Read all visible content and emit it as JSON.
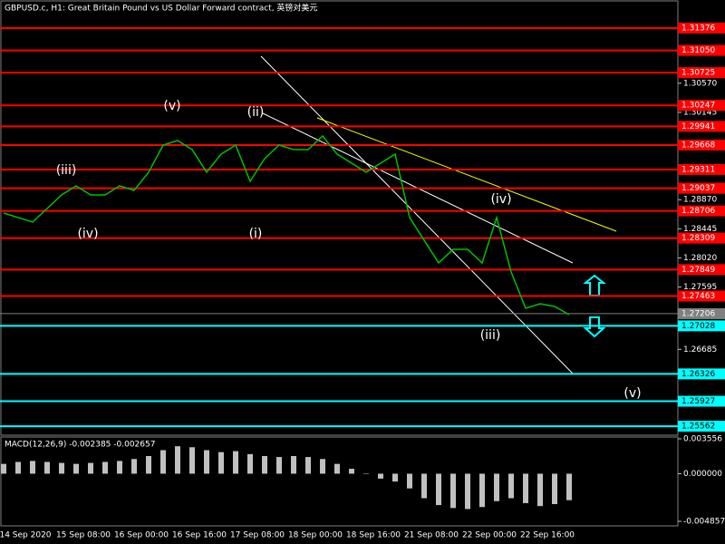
{
  "chart_data": [
    {
      "type": "line",
      "title": "GBPUSD.c, H1:  Great Britain Pound vs US Dollar Forward contract, 英镑对美元",
      "series": [
        {
          "name": "GBPUSD.c",
          "color": "#00c000",
          "values": [
            1.28675,
            1.28609,
            1.28543,
            1.28741,
            1.2894,
            1.29072,
            1.2894,
            1.2894,
            1.29072,
            1.29006,
            1.29271,
            1.29668,
            1.29734,
            1.29602,
            1.29271,
            1.29536,
            1.29668,
            1.29138,
            1.29469,
            1.29668,
            1.29602,
            1.29602,
            1.298,
            1.29536,
            1.29403,
            1.29271,
            1.29403,
            1.29536,
            1.28609,
            1.28278,
            1.27947,
            1.28145,
            1.28145,
            1.27947,
            1.28609,
            1.27814,
            1.27285,
            1.27351,
            1.27311,
            1.27192
          ]
        }
      ],
      "x_labels": [
        "14 Sep 2020",
        "15 Sep 08:00",
        "16 Sep 00:00",
        "16 Sep 16:00",
        "17 Sep 08:00",
        "18 Sep 00:00",
        "18 Sep 16:00",
        "21 Sep 08:00",
        "22 Sep 00:00",
        "22 Sep 16:00"
      ],
      "ylim": [
        1.25431,
        1.31786
      ],
      "yticks": [
        {
          "value": 1.3057,
          "label": "1.30570"
        },
        {
          "value": 1.30145,
          "label": "1.30145"
        },
        {
          "value": 1.2887,
          "label": "1.28870"
        },
        {
          "value": 1.28445,
          "label": "1.28445"
        },
        {
          "value": 1.2802,
          "label": "1.28020"
        },
        {
          "value": 1.27595,
          "label": "1.27595"
        },
        {
          "value": 1.26685,
          "label": "1.26685"
        }
      ],
      "red_levels": [
        {
          "value": 1.31376,
          "label": "1.31376"
        },
        {
          "value": 1.3105,
          "label": "1.31050"
        },
        {
          "value": 1.30725,
          "label": "1.30725"
        },
        {
          "value": 1.30247,
          "label": "1.30247"
        },
        {
          "value": 1.29941,
          "label": "1.29941"
        },
        {
          "value": 1.29668,
          "label": "1.29668"
        },
        {
          "value": 1.29311,
          "label": "1.29311"
        },
        {
          "value": 1.29037,
          "label": "1.29037"
        },
        {
          "value": 1.28706,
          "label": "1.28706"
        },
        {
          "value": 1.28309,
          "label": "1.28309"
        },
        {
          "value": 1.27849,
          "label": "1.27849"
        },
        {
          "value": 1.27463,
          "label": "1.27463"
        }
      ],
      "red_color": "#ff0000",
      "cyan_levels": [
        {
          "value": 1.27028,
          "label": "1.27028"
        },
        {
          "value": 1.26326,
          "label": "1.26326"
        },
        {
          "value": 1.25927,
          "label": "1.25927"
        },
        {
          "value": 1.25562,
          "label": "1.25562"
        }
      ],
      "cyan_color": "#00ffff",
      "current_price": {
        "value": 1.27206,
        "label": "1.27206"
      },
      "annotations": [
        "(iii)",
        "(iv)",
        "(v)",
        "(ii)",
        "(i)",
        "(iv)",
        "(iii)",
        "(v)"
      ]
    },
    {
      "type": "bar",
      "title": "MACD(12,26,9) -0.002385 -0.002657",
      "color": "#c0c0c0",
      "values": [
        0.001,
        0.0012,
        0.0013,
        0.0012,
        0.0011,
        0.001,
        0.0011,
        0.0012,
        0.0013,
        0.0015,
        0.0018,
        0.0024,
        0.0028,
        0.0027,
        0.0024,
        0.0022,
        0.0023,
        0.002,
        0.0018,
        0.0017,
        0.0018,
        0.0017,
        0.0015,
        0.001,
        0.0005,
        0,
        -0.0005,
        -0.0008,
        -0.0015,
        -0.0025,
        -0.0032,
        -0.0035,
        -0.0036,
        -0.0034,
        -0.0028,
        -0.0025,
        -0.003,
        -0.0033,
        -0.0031,
        -0.0027
      ],
      "ylim": [
        -0.005319,
        0.003741
      ],
      "yticks": [
        0.003556,
        {
          "value": 0,
          "label": "0.000000"
        },
        -0.004857
      ]
    }
  ]
}
